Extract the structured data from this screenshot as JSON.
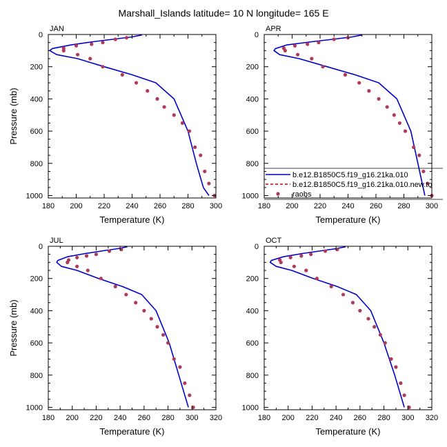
{
  "figure": {
    "title": "Marshall_Islands  latitude= 10 N longitude= 165 E"
  },
  "legend": {
    "entries": [
      {
        "label": "b.e12.B1850C5.f19_g16.21ka.010",
        "color": "#0000cc",
        "style": "solid"
      },
      {
        "label": "b.e12.B1850C5.f19_g16.21ka.010.new.to",
        "color": "#cc0000",
        "style": "dashed"
      },
      {
        "label": "raobs",
        "color": "#b03a5a",
        "style": "marker"
      }
    ]
  },
  "chart_data": [
    {
      "type": "line",
      "panel": "JAN",
      "xlabel": "Temperature (K)",
      "ylabel": "Pressure (mb)",
      "xlim": [
        180,
        300
      ],
      "xticks": [
        "180",
        "200",
        "220",
        "240",
        "260",
        "280",
        "300"
      ],
      "ylim": [
        0,
        1015
      ],
      "y_reversed": true,
      "yticks": [
        "0",
        "200",
        "400",
        "600",
        "800",
        "1000"
      ],
      "series": [
        {
          "name": "b.e12.B1850C5.f19_g16.21ka.010",
          "color": "#0000cc",
          "x": [
            247,
            240,
            228,
            212,
            196,
            183,
            181,
            186,
            201,
            220,
            240,
            257,
            270,
            280,
            286,
            291,
            295
          ],
          "y": [
            3,
            15,
            28,
            45,
            65,
            87,
            100,
            125,
            150,
            200,
            250,
            300,
            400,
            600,
            800,
            950,
            1000
          ]
        },
        {
          "name": "raobs",
          "color": "#b03a5a",
          "x": [
            236,
            228,
            219,
            211,
            200,
            191,
            191,
            201,
            210,
            219,
            233,
            243,
            251,
            258,
            263,
            270,
            276,
            281,
            285,
            289,
            292,
            295,
            299
          ],
          "y": [
            20,
            30,
            50,
            60,
            70,
            85,
            100,
            125,
            150,
            200,
            250,
            300,
            350,
            400,
            450,
            500,
            550,
            600,
            700,
            750,
            850,
            925,
            1000
          ]
        }
      ]
    },
    {
      "type": "line",
      "panel": "APR",
      "xlabel": "Temperature (K)",
      "ylabel": "",
      "xlim": [
        180,
        300
      ],
      "xticks": [
        "180",
        "200",
        "220",
        "240",
        "260",
        "280",
        "300"
      ],
      "ylim": [
        0,
        1015
      ],
      "y_reversed": true,
      "yticks": [
        "0",
        "200",
        "400",
        "600",
        "800",
        "1000"
      ],
      "series": [
        {
          "name": "b.e12.B1850C5.f19_g16.21ka.010",
          "color": "#0000cc",
          "x": [
            250,
            243,
            231,
            214,
            196,
            188,
            187,
            191,
            205,
            225,
            245,
            262,
            275,
            285,
            290,
            295
          ],
          "y": [
            3,
            15,
            28,
            45,
            65,
            88,
            100,
            125,
            150,
            200,
            250,
            300,
            400,
            600,
            800,
            1000
          ]
        },
        {
          "name": "raobs",
          "color": "#b03a5a",
          "x": [
            240,
            230,
            219,
            211,
            202,
            194,
            195,
            204,
            214,
            222,
            238,
            248,
            255,
            262,
            268,
            273,
            277,
            281,
            287,
            291,
            294,
            297,
            300
          ],
          "y": [
            20,
            30,
            50,
            60,
            70,
            85,
            100,
            125,
            150,
            200,
            250,
            300,
            350,
            400,
            450,
            500,
            550,
            600,
            700,
            750,
            850,
            925,
            1000
          ]
        }
      ]
    },
    {
      "type": "line",
      "panel": "JUL",
      "xlabel": "Temperature (K)",
      "ylabel": "Pressure (mb)",
      "xlim": [
        180,
        320
      ],
      "xticks": [
        "180",
        "200",
        "220",
        "240",
        "260",
        "280",
        "300",
        "320"
      ],
      "ylim": [
        0,
        1015
      ],
      "y_reversed": true,
      "yticks": [
        "0",
        "200",
        "400",
        "600",
        "800",
        "1000"
      ],
      "series": [
        {
          "name": "b.e12.B1850C5.f19_g16.21ka.010",
          "color": "#0000cc",
          "x": [
            246,
            238,
            226,
            211,
            196,
            188,
            187,
            191,
            204,
            222,
            242,
            258,
            270,
            281,
            289,
            297
          ],
          "y": [
            3,
            15,
            28,
            45,
            65,
            88,
            100,
            125,
            150,
            200,
            250,
            300,
            400,
            600,
            800,
            1000
          ]
        },
        {
          "name": "raobs",
          "color": "#b03a5a",
          "x": [
            241,
            231,
            220,
            212,
            204,
            197,
            196,
            204,
            213,
            224,
            236,
            245,
            253,
            260,
            266,
            271,
            276,
            280,
            285,
            290,
            294,
            298,
            301
          ],
          "y": [
            20,
            30,
            50,
            60,
            70,
            85,
            100,
            125,
            150,
            200,
            250,
            300,
            350,
            400,
            450,
            500,
            550,
            600,
            700,
            750,
            850,
            925,
            1000
          ]
        }
      ]
    },
    {
      "type": "line",
      "panel": "OCT",
      "xlabel": "Temperature (K)",
      "ylabel": "",
      "xlim": [
        180,
        320
      ],
      "xticks": [
        "180",
        "200",
        "220",
        "240",
        "260",
        "280",
        "300",
        "320"
      ],
      "ylim": [
        0,
        1015
      ],
      "y_reversed": true,
      "yticks": [
        "0",
        "200",
        "400",
        "600",
        "800",
        "1000"
      ],
      "series": [
        {
          "name": "b.e12.B1850C5.f19_g16.21ka.010",
          "color": "#0000cc",
          "x": [
            248,
            240,
            228,
            212,
            196,
            186,
            185,
            190,
            203,
            221,
            241,
            257,
            269,
            280,
            289,
            297
          ],
          "y": [
            3,
            15,
            28,
            45,
            65,
            88,
            100,
            125,
            150,
            200,
            250,
            300,
            400,
            600,
            800,
            1000
          ]
        },
        {
          "name": "raobs",
          "color": "#b03a5a",
          "x": [
            241,
            231,
            219,
            211,
            202,
            193,
            194,
            205,
            215,
            224,
            236,
            246,
            254,
            260,
            267,
            272,
            277,
            281,
            286,
            290,
            294,
            297,
            301
          ],
          "y": [
            20,
            30,
            50,
            60,
            70,
            85,
            100,
            125,
            150,
            200,
            250,
            300,
            350,
            400,
            450,
            500,
            550,
            600,
            700,
            750,
            850,
            925,
            1000
          ]
        }
      ]
    }
  ]
}
